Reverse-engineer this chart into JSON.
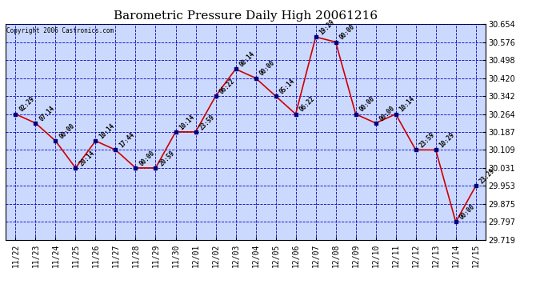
{
  "title": "Barometric Pressure Daily High 20061216",
  "copyright": "Copyright 2006 Castronics.com",
  "xlabels": [
    "11/22",
    "11/23",
    "11/24",
    "11/25",
    "11/26",
    "11/27",
    "11/28",
    "11/29",
    "11/30",
    "12/01",
    "12/02",
    "12/03",
    "12/04",
    "12/05",
    "12/06",
    "12/07",
    "12/08",
    "12/09",
    "12/10",
    "12/11",
    "12/12",
    "12/13",
    "12/14",
    "12/15"
  ],
  "values": [
    30.264,
    30.225,
    30.148,
    30.031,
    30.148,
    30.109,
    30.031,
    30.031,
    30.187,
    30.187,
    30.342,
    30.459,
    30.42,
    30.342,
    30.264,
    30.598,
    30.576,
    30.264,
    30.225,
    30.264,
    30.109,
    30.109,
    29.797,
    29.953
  ],
  "point_labels": [
    "02:29",
    "07:14",
    "00:00",
    "20:14",
    "10:14",
    "17:44",
    "00:00",
    "20:59",
    "10:14",
    "23:59",
    "06:22",
    "08:14",
    "00:00",
    "05:14",
    "06:22",
    "19:29",
    "00:00",
    "00:00",
    "00:00",
    "10:14",
    "23:59",
    "10:29",
    "00:00",
    "23:29"
  ],
  "ylim_min": 29.719,
  "ylim_max": 30.654,
  "yticks": [
    29.719,
    29.797,
    29.875,
    29.953,
    30.031,
    30.109,
    30.187,
    30.264,
    30.342,
    30.42,
    30.498,
    30.576,
    30.654
  ],
  "line_color": "#cc0000",
  "marker_color": "#000080",
  "bg_color": "#ffffff",
  "plot_bg_color": "#ccd9ff",
  "grid_color": "#0000bb",
  "title_fontsize": 11,
  "tick_fontsize": 7,
  "point_label_fontsize": 5.5
}
